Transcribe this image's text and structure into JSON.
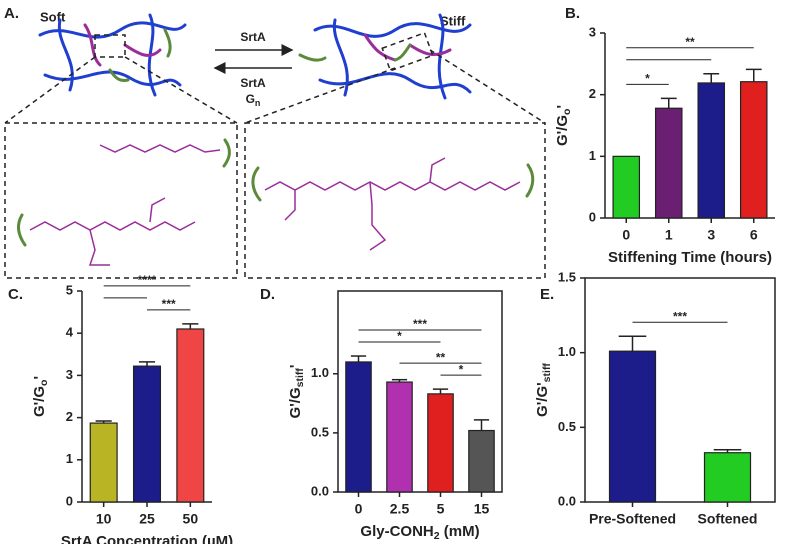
{
  "diagram": {
    "panel_label": "A.",
    "soft": "Soft",
    "stiff": "Stiff",
    "forward": "SrtA",
    "reverse": "SrtA",
    "reverse_agent": {
      "main": "G",
      "sub": "n"
    }
  },
  "chart_data": [
    {
      "type": "bar",
      "panel_label": "B.",
      "ylabel": {
        "main": "G'/G",
        "sub": "o",
        "end": "'"
      },
      "xlabel": "Stiffening Time (hours)",
      "categories": [
        "0",
        "1",
        "3",
        "6"
      ],
      "values": [
        1.0,
        1.78,
        2.19,
        2.21
      ],
      "errors": [
        0,
        0.16,
        0.15,
        0.2
      ],
      "colors": [
        "#22cc22",
        "#6a1f72",
        "#1c1c8a",
        "#e0201e"
      ],
      "ylim": [
        0,
        3
      ],
      "yticks": [
        0,
        1,
        2,
        3
      ],
      "frame": false,
      "significance": [
        {
          "from": "0",
          "to": "1",
          "label": "*"
        },
        {
          "from": "0",
          "to": "3"
        },
        {
          "from": "0",
          "to": "6",
          "label": "**"
        }
      ]
    },
    {
      "type": "bar",
      "panel_label": "C.",
      "ylabel": {
        "main": "G'/G",
        "sub": "o",
        "end": "'"
      },
      "xlabel": "SrtA Concentration (µM)",
      "categories": [
        "10",
        "25",
        "50"
      ],
      "values": [
        1.87,
        3.22,
        4.1
      ],
      "errors": [
        0.05,
        0.1,
        0.12
      ],
      "colors": [
        "#b8b424",
        "#1c1c8a",
        "#f04545"
      ],
      "ylim": [
        0,
        5
      ],
      "yticks": [
        0,
        1,
        2,
        3,
        4,
        5
      ],
      "frame": false,
      "significance": [
        {
          "from": "25",
          "to": "50",
          "label": "***"
        },
        {
          "from": "10",
          "to": "25"
        },
        {
          "from": "10",
          "to": "50",
          "label": "****"
        }
      ]
    },
    {
      "type": "bar",
      "panel_label": "D.",
      "ylabel": {
        "main": "G'/G",
        "sub": "stiff",
        "end": "'"
      },
      "xlabel": {
        "main": "Gly-CONH",
        "sub": "2",
        "end": " (mM)"
      },
      "categories": [
        "0",
        "2.5",
        "5",
        "15"
      ],
      "values": [
        1.1,
        0.93,
        0.83,
        0.52
      ],
      "errors": [
        0.05,
        0.02,
        0.04,
        0.09
      ],
      "colors": [
        "#1c1c8a",
        "#b030b0",
        "#e0201e",
        "#555555"
      ],
      "ylim": [
        0,
        1.7
      ],
      "yticks": [
        {
          "value": 0,
          "label": "0.0"
        },
        {
          "value": 0.5,
          "label": "0.5"
        },
        {
          "value": 1,
          "label": "1.0"
        }
      ],
      "frame": true,
      "significance": [
        {
          "from": "5",
          "to": "15",
          "label": "*"
        },
        {
          "from": "2.5",
          "to": "15",
          "label": "**"
        },
        {
          "from": "0",
          "to": "5",
          "label": "*"
        },
        {
          "from": "0",
          "to": "15",
          "label": "***"
        }
      ]
    },
    {
      "type": "bar",
      "panel_label": "E.",
      "ylabel": {
        "main": "G'/G'",
        "sub": "stiff"
      },
      "xlabel": null,
      "categories": [
        "Pre-Softened",
        "Softened"
      ],
      "values": [
        1.01,
        0.33
      ],
      "errors": [
        0.1,
        0.02
      ],
      "colors": [
        "#1c1c8a",
        "#22cc22"
      ],
      "ylim": [
        0,
        1.5
      ],
      "yticks": [
        {
          "value": 0,
          "label": "0.0"
        },
        {
          "value": 0.5,
          "label": "0.5"
        },
        {
          "value": 1,
          "label": "1.0"
        },
        {
          "value": 1.5,
          "label": "1.5"
        }
      ],
      "frame": true,
      "significance": [
        {
          "from": "Pre-Softened",
          "to": "Softened",
          "label": "***"
        }
      ]
    }
  ]
}
